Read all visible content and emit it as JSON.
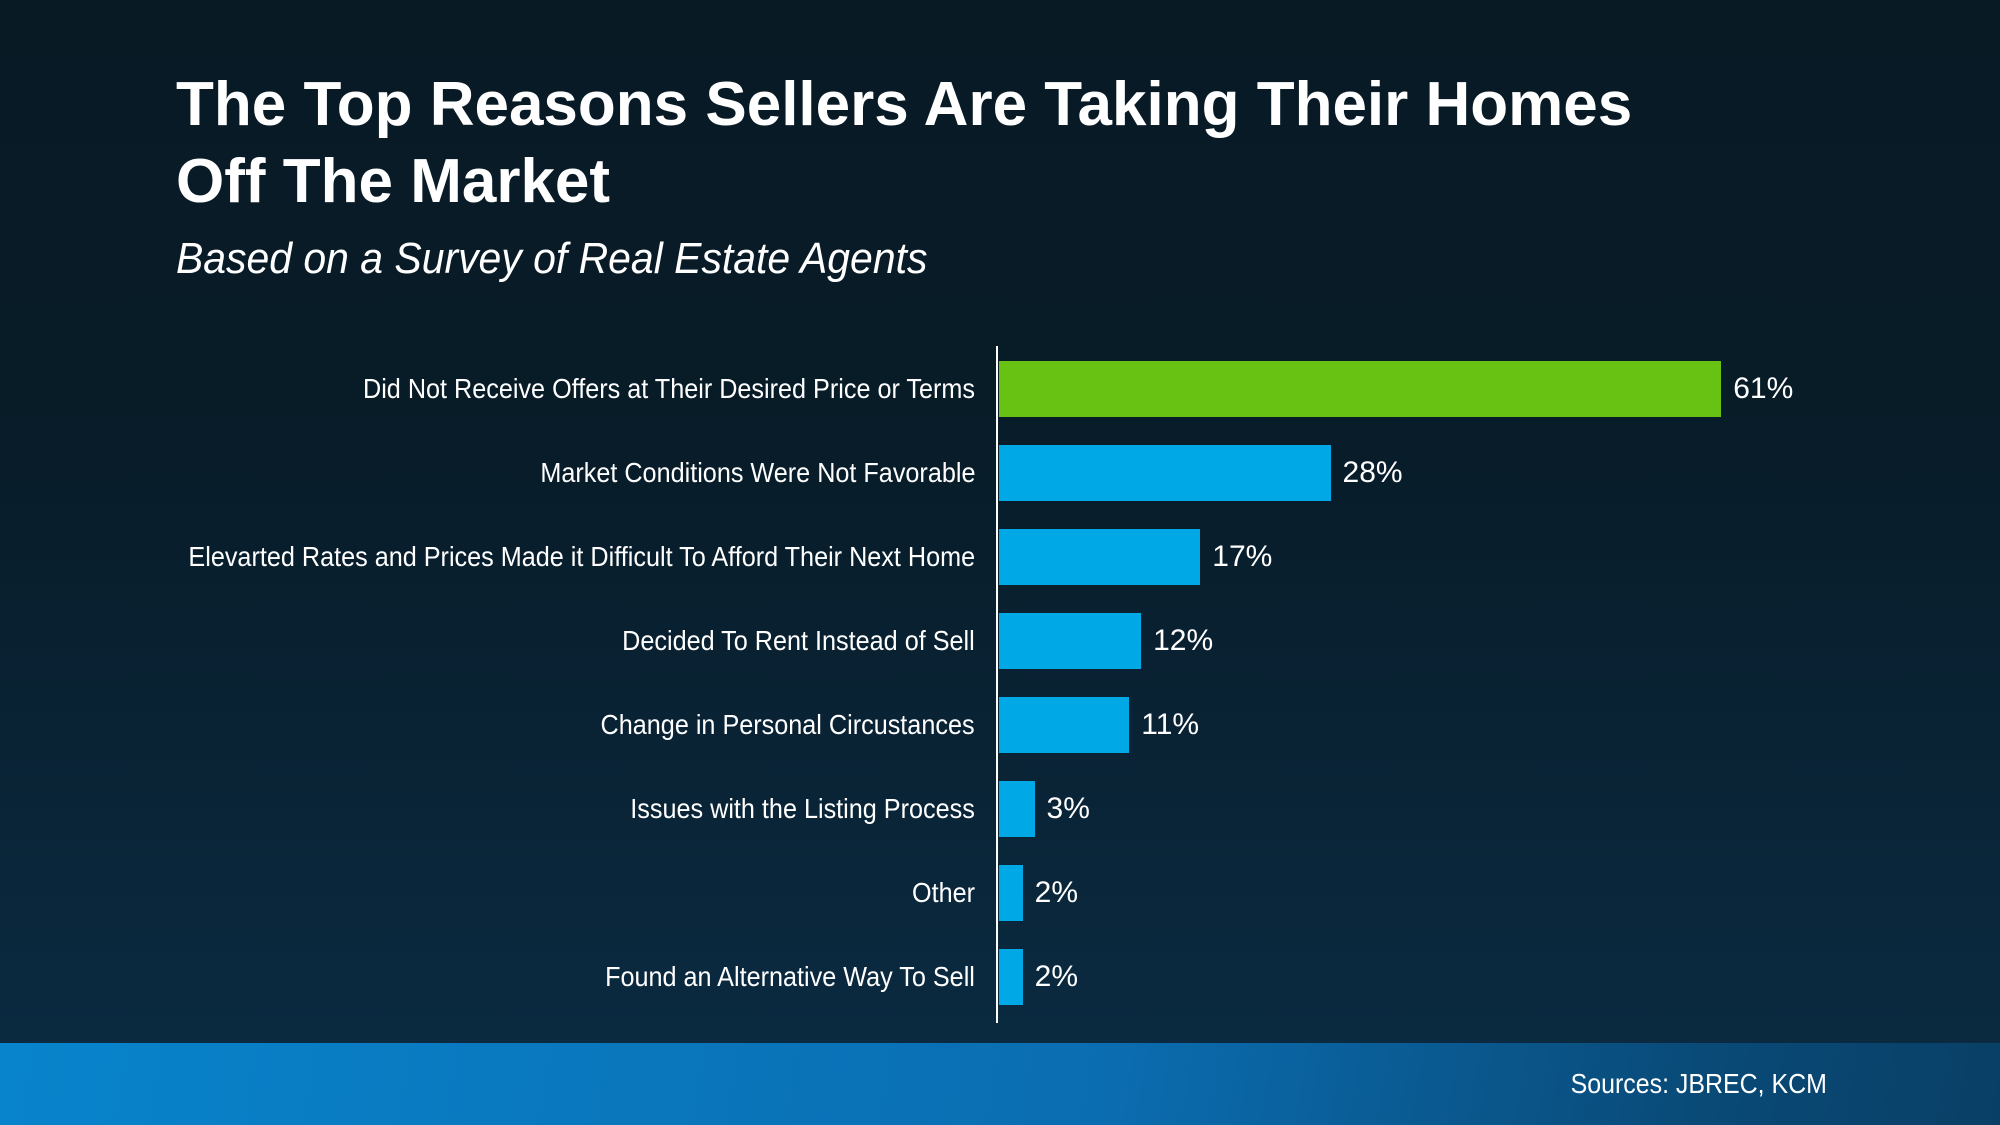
{
  "title": {
    "lines": [
      "The Top Reasons Sellers Are Taking Their Homes",
      "Off The Market"
    ]
  },
  "subtitle": "Based on a Survey of Real Estate Agents",
  "footer": {
    "sources": "Sources: JBREC, KCM"
  },
  "colors": {
    "background_top": "#081a24",
    "background_bottom": "#0b2c44",
    "bar_blue": "#00a9e6",
    "bar_green": "#68c214",
    "axis": "#ffffff",
    "footer_left": "#0884cc",
    "footer_right": "#093f66",
    "text": "#ffffff"
  },
  "chart_data": {
    "type": "bar",
    "orientation": "horizontal",
    "title": "The Top Reasons Sellers Are Taking Their Homes Off The Market",
    "subtitle": "Based on a Survey of Real Estate Agents",
    "categories": [
      "Did Not Receive Offers at Their Desired Price or Terms",
      "Market Conditions Were Not Favorable",
      "Elevarted Rates and Prices Made it Difficult To Afford Their Next Home",
      "Decided To Rent Instead of Sell",
      "Change in Personal Circustances",
      "Issues with the Listing Process",
      "Other",
      "Found an Alternative Way To Sell"
    ],
    "values": [
      61,
      28,
      17,
      12,
      11,
      3,
      2,
      2
    ],
    "value_labels": [
      "61%",
      "28%",
      "17%",
      "12%",
      "11%",
      "3%",
      "2%",
      "2%"
    ],
    "highlight_index": 0,
    "xlim": [
      0,
      65
    ],
    "grid": false,
    "value_label_position": "end",
    "legend": null
  }
}
